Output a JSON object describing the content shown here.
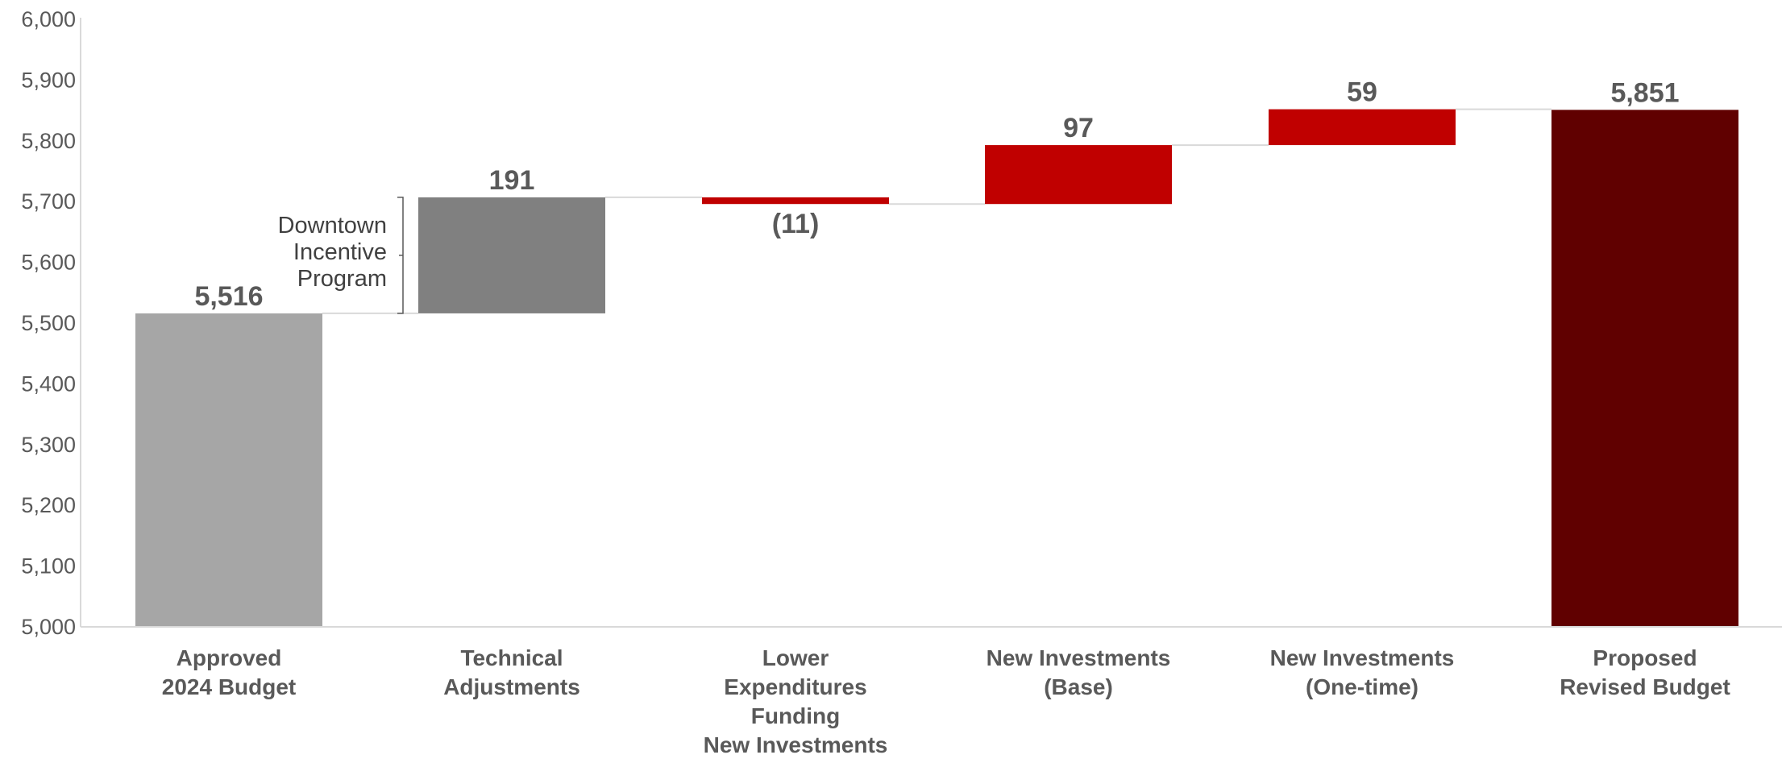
{
  "chart_data": {
    "type": "waterfall",
    "title": "",
    "xlabel": "",
    "ylabel": "",
    "ylim": [
      5000,
      6000
    ],
    "yticks": [
      5000,
      5100,
      5200,
      5300,
      5400,
      5500,
      5600,
      5700,
      5800,
      5900,
      6000
    ],
    "ytick_labels": [
      "5,000",
      "5,100",
      "5,200",
      "5,300",
      "5,400",
      "5,500",
      "5,600",
      "5,700",
      "5,800",
      "5,900",
      "6,000"
    ],
    "grid": false,
    "legend": "none",
    "bars": [
      {
        "category": [
          "Approved",
          "2024 Budget"
        ],
        "value": 5516,
        "kind": "total",
        "start": 5000,
        "end": 5516,
        "label": "5,516",
        "color": "#a6a6a6"
      },
      {
        "category": [
          "Technical",
          "Adjustments"
        ],
        "value": 191,
        "kind": "delta",
        "start": 5516,
        "end": 5707,
        "label": "191",
        "color": "#808080"
      },
      {
        "category": [
          "Lower",
          "Expenditures",
          "Funding",
          "New Investments"
        ],
        "value": -11,
        "kind": "delta",
        "start": 5707,
        "end": 5696,
        "label": "(11)",
        "color": "#c00000"
      },
      {
        "category": [
          "New Investments",
          "(Base)"
        ],
        "value": 97,
        "kind": "delta",
        "start": 5696,
        "end": 5793,
        "label": "97",
        "color": "#c00000"
      },
      {
        "category": [
          "New Investments",
          "(One-time)"
        ],
        "value": 59,
        "kind": "delta",
        "start": 5793,
        "end": 5852,
        "label": "59",
        "color": "#c00000"
      },
      {
        "category": [
          "Proposed",
          "Revised Budget"
        ],
        "value": 5851,
        "kind": "total",
        "start": 5000,
        "end": 5851,
        "label": "5,851",
        "color": "#600000"
      }
    ],
    "annotation": {
      "lines": [
        "Downtown",
        "Incentive",
        "Program"
      ],
      "bracket_from": 5516,
      "bracket_to": 5707
    },
    "colors": {
      "axis": "#d9d9d9",
      "connector": "#d9d9d9",
      "bracket": "#595959"
    }
  }
}
